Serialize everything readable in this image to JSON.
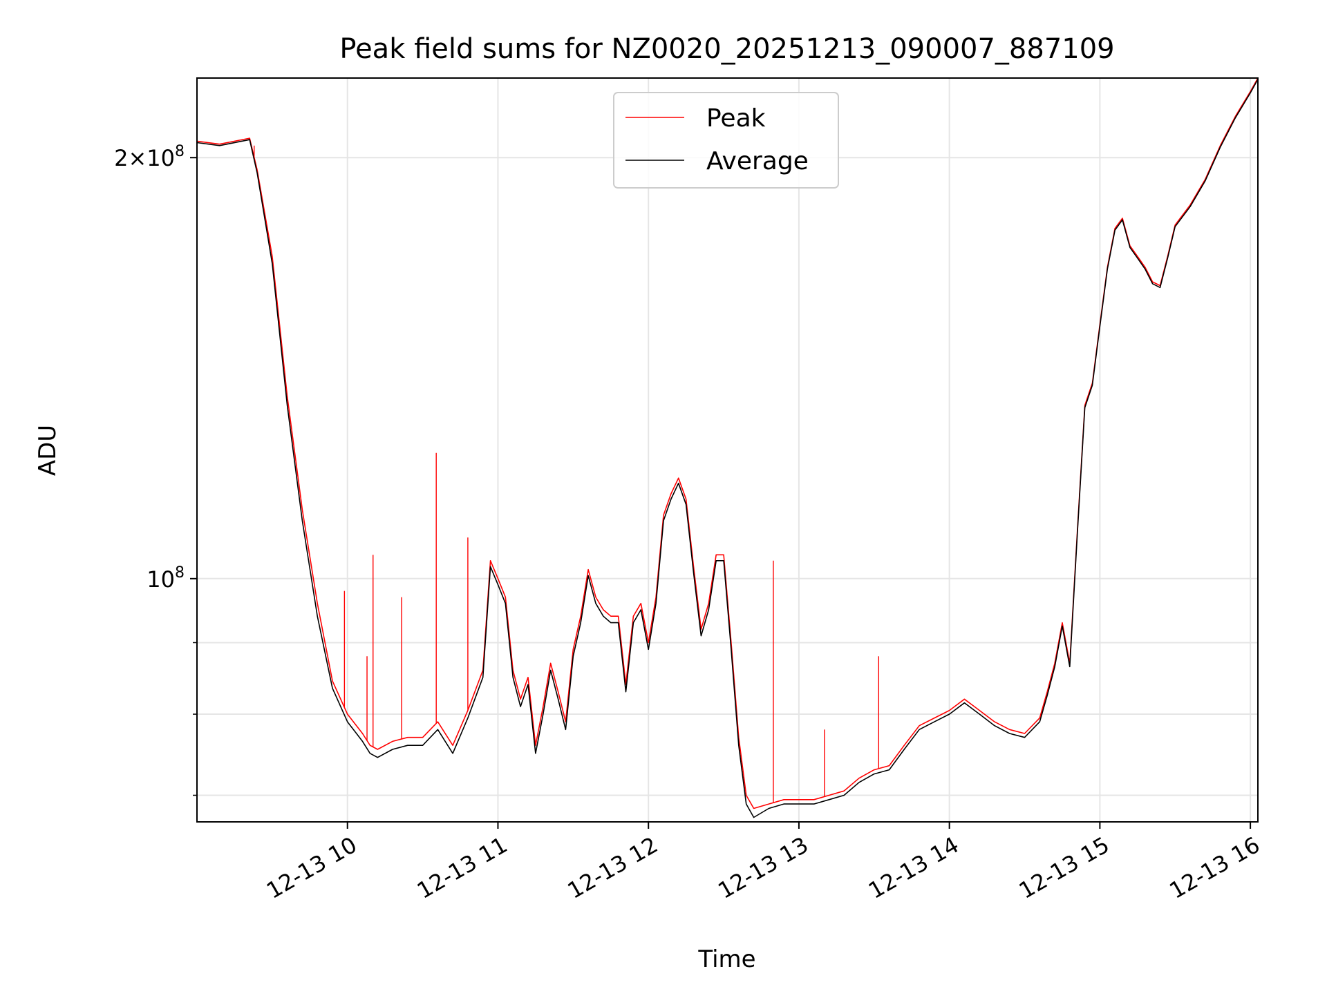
{
  "chart_data": {
    "type": "line",
    "title": "Peak field sums for NZ0020_20251213_090007_887109",
    "xlabel": "Time",
    "ylabel": "ADU",
    "xlim": [
      9.0,
      16.05
    ],
    "ylim": [
      67000000,
      228000000
    ],
    "yscale": "log",
    "grid": true,
    "legend_position": "top-center",
    "x_ticks": [
      {
        "value": 10,
        "label": "12-13 10"
      },
      {
        "value": 11,
        "label": "12-13 11"
      },
      {
        "value": 12,
        "label": "12-13 12"
      },
      {
        "value": 13,
        "label": "12-13 13"
      },
      {
        "value": 14,
        "label": "12-13 14"
      },
      {
        "value": 15,
        "label": "12-13 15"
      },
      {
        "value": 16,
        "label": "12-13 16"
      }
    ],
    "y_major_ticks": [
      {
        "value": 100000000,
        "base": "10",
        "exp": "8"
      },
      {
        "value": 200000000,
        "base": "2×10",
        "exp": "8"
      }
    ],
    "y_minor_ticks": [
      70000000,
      80000000,
      90000000
    ],
    "series": [
      {
        "name": "Peak",
        "color": "#ff0000",
        "x": [
          9.0,
          9.15,
          9.35,
          9.4,
          9.5,
          9.6,
          9.7,
          9.8,
          9.9,
          10.0,
          10.1,
          10.15,
          10.2,
          10.3,
          10.4,
          10.5,
          10.6,
          10.7,
          10.8,
          10.9,
          10.95,
          11.0,
          11.05,
          11.1,
          11.15,
          11.2,
          11.25,
          11.3,
          11.35,
          11.4,
          11.45,
          11.5,
          11.55,
          11.6,
          11.65,
          11.7,
          11.75,
          11.8,
          11.85,
          11.9,
          11.95,
          12.0,
          12.05,
          12.1,
          12.15,
          12.2,
          12.25,
          12.3,
          12.35,
          12.4,
          12.45,
          12.5,
          12.55,
          12.6,
          12.65,
          12.7,
          12.8,
          12.9,
          13.0,
          13.1,
          13.2,
          13.3,
          13.4,
          13.5,
          13.6,
          13.7,
          13.8,
          13.9,
          14.0,
          14.1,
          14.2,
          14.3,
          14.4,
          14.5,
          14.6,
          14.65,
          14.7,
          14.75,
          14.8,
          14.85,
          14.9,
          14.95,
          15.0,
          15.05,
          15.1,
          15.15,
          15.2,
          15.25,
          15.3,
          15.35,
          15.4,
          15.45,
          15.5,
          15.6,
          15.7,
          15.8,
          15.9,
          16.0,
          16.05
        ],
        "y": [
          205500000,
          204500000,
          206500000,
          196000000,
          170000000,
          135000000,
          112000000,
          96000000,
          84500000,
          80000000,
          77500000,
          76000000,
          75500000,
          76500000,
          77000000,
          77000000,
          79000000,
          76000000,
          80500000,
          86000000,
          103000000,
          100000000,
          97000000,
          86000000,
          82000000,
          85000000,
          76000000,
          81000000,
          87000000,
          83000000,
          79000000,
          89000000,
          94000000,
          101500000,
          97000000,
          95000000,
          94000000,
          94000000,
          84000000,
          94000000,
          96000000,
          90000000,
          97000000,
          111000000,
          115000000,
          118000000,
          114000000,
          102000000,
          92000000,
          96000000,
          104000000,
          104000000,
          90000000,
          77000000,
          70000000,
          68500000,
          69000000,
          69500000,
          69500000,
          69500000,
          70000000,
          70500000,
          72000000,
          73000000,
          73500000,
          76000000,
          78500000,
          79500000,
          80500000,
          82000000,
          80500000,
          79000000,
          78000000,
          77500000,
          79500000,
          83000000,
          87000000,
          93000000,
          87000000,
          108000000,
          133000000,
          138000000,
          152000000,
          167000000,
          178000000,
          181000000,
          173000000,
          170000000,
          167000000,
          163000000,
          162000000,
          170000000,
          179000000,
          185000000,
          193000000,
          204000000,
          214000000,
          223000000,
          228000000
        ]
      },
      {
        "name": "Average",
        "color": "#000000",
        "x": [
          9.0,
          9.15,
          9.35,
          9.4,
          9.5,
          9.6,
          9.7,
          9.8,
          9.9,
          10.0,
          10.1,
          10.15,
          10.2,
          10.3,
          10.4,
          10.5,
          10.6,
          10.7,
          10.8,
          10.9,
          10.95,
          11.0,
          11.05,
          11.1,
          11.15,
          11.2,
          11.25,
          11.3,
          11.35,
          11.4,
          11.45,
          11.5,
          11.55,
          11.6,
          11.65,
          11.7,
          11.75,
          11.8,
          11.85,
          11.9,
          11.95,
          12.0,
          12.05,
          12.1,
          12.15,
          12.2,
          12.25,
          12.3,
          12.35,
          12.4,
          12.45,
          12.5,
          12.55,
          12.6,
          12.65,
          12.7,
          12.8,
          12.9,
          13.0,
          13.1,
          13.2,
          13.3,
          13.4,
          13.5,
          13.6,
          13.7,
          13.8,
          13.9,
          14.0,
          14.1,
          14.2,
          14.3,
          14.4,
          14.5,
          14.6,
          14.65,
          14.7,
          14.75,
          14.8,
          14.85,
          14.9,
          14.95,
          15.0,
          15.05,
          15.1,
          15.15,
          15.2,
          15.25,
          15.3,
          15.35,
          15.4,
          15.45,
          15.5,
          15.6,
          15.7,
          15.8,
          15.9,
          16.0,
          16.05
        ],
        "y": [
          205000000,
          204000000,
          206000000,
          195000000,
          168000000,
          133000000,
          110000000,
          94000000,
          83500000,
          79000000,
          76500000,
          75000000,
          74500000,
          75500000,
          76000000,
          76000000,
          78000000,
          75000000,
          79500000,
          85000000,
          102000000,
          99000000,
          96000000,
          85000000,
          81000000,
          84000000,
          75000000,
          80000000,
          86000000,
          82000000,
          78000000,
          88000000,
          93000000,
          100500000,
          96000000,
          94000000,
          93000000,
          93000000,
          83000000,
          93000000,
          95000000,
          89000000,
          96000000,
          110000000,
          114000000,
          117000000,
          113000000,
          101000000,
          91000000,
          95000000,
          103000000,
          103000000,
          89000000,
          76000000,
          69000000,
          67500000,
          68500000,
          69000000,
          69000000,
          69000000,
          69500000,
          70000000,
          71500000,
          72500000,
          73000000,
          75500000,
          78000000,
          79000000,
          80000000,
          81500000,
          80000000,
          78500000,
          77500000,
          77000000,
          79000000,
          82500000,
          86500000,
          92500000,
          86500000,
          107500000,
          132500000,
          137500000,
          151500000,
          166500000,
          177500000,
          180500000,
          172500000,
          169500000,
          166500000,
          162500000,
          161500000,
          169500000,
          178500000,
          184500000,
          192500000,
          203500000,
          213500000,
          222500000,
          227500000
        ]
      }
    ],
    "spikes": [
      {
        "series": "Peak",
        "x": 9.38,
        "y": 204000000
      },
      {
        "series": "Peak",
        "x": 9.98,
        "y": 98000000
      },
      {
        "series": "Peak",
        "x": 10.13,
        "y": 88000000
      },
      {
        "series": "Peak",
        "x": 10.17,
        "y": 104000000
      },
      {
        "series": "Peak",
        "x": 10.36,
        "y": 97000000
      },
      {
        "series": "Peak",
        "x": 10.59,
        "y": 123000000
      },
      {
        "series": "Peak",
        "x": 10.8,
        "y": 107000000
      },
      {
        "series": "Peak",
        "x": 12.83,
        "y": 103000000
      },
      {
        "series": "Peak",
        "x": 13.17,
        "y": 78000000
      },
      {
        "series": "Peak",
        "x": 13.53,
        "y": 88000000
      }
    ]
  }
}
